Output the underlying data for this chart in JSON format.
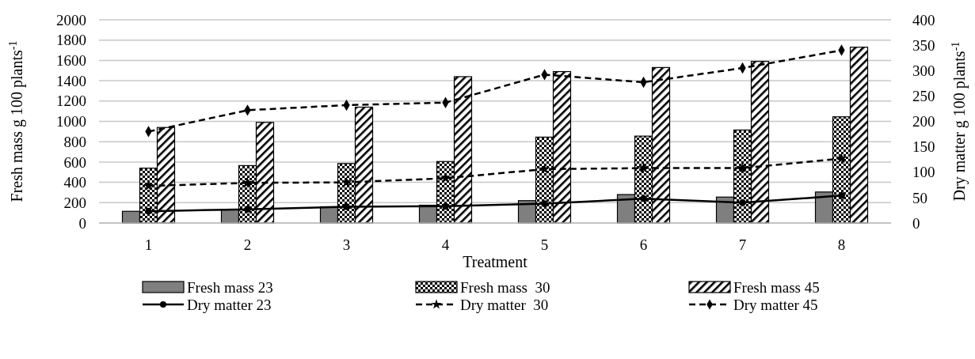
{
  "chart_data": {
    "type": "bar",
    "xlabel": "Treatment",
    "ylabel": "Fresh mass g 100 plants$^{-1}$",
    "y2label": "Dry matter g 100 plants$^{-1}$",
    "categories": [
      "1",
      "2",
      "3",
      "4",
      "5",
      "6",
      "7",
      "8"
    ],
    "series": [
      {
        "name": "Fresh mass 23",
        "color": "#7f7f7f",
        "values": [
          115,
          130,
          160,
          175,
          220,
          280,
          255,
          305
        ]
      },
      {
        "name": "Fresh mass  30",
        "color": "#000000",
        "values": [
          540,
          565,
          585,
          605,
          845,
          855,
          915,
          1045
        ]
      },
      {
        "name": "Fresh mass 45",
        "color": "#000000",
        "values": [
          940,
          990,
          1140,
          1440,
          1490,
          1530,
          1590,
          1730
        ]
      },
      {
        "name": "Dry matter 23",
        "type": "line",
        "axis": "y2",
        "color": "#000000",
        "marker": "circle",
        "line_style": "solid",
        "values": [
          23,
          27,
          32,
          33,
          38,
          48,
          40,
          54
        ]
      },
      {
        "name": "Dry matter  30",
        "type": "line",
        "axis": "y2",
        "color": "#000000",
        "marker": "star",
        "line_style": "dashed",
        "values": [
          73,
          79,
          80,
          88,
          106,
          108,
          108,
          127
        ]
      },
      {
        "name": "Dry matter 45",
        "type": "line",
        "axis": "y2",
        "color": "#000000",
        "marker": "diamond",
        "line_style": "dashed",
        "values": [
          180,
          222,
          232,
          237,
          292,
          277,
          305,
          340
        ]
      }
    ],
    "ylim": [
      0,
      2000
    ],
    "yticks": [
      0,
      200,
      400,
      600,
      800,
      1000,
      1200,
      1400,
      1600,
      1800,
      2000
    ],
    "y2lim": [
      0,
      400
    ],
    "y2ticks": [
      0,
      50,
      100,
      150,
      200,
      250,
      300,
      350,
      400
    ],
    "grid": "y",
    "legend": "bottom"
  }
}
